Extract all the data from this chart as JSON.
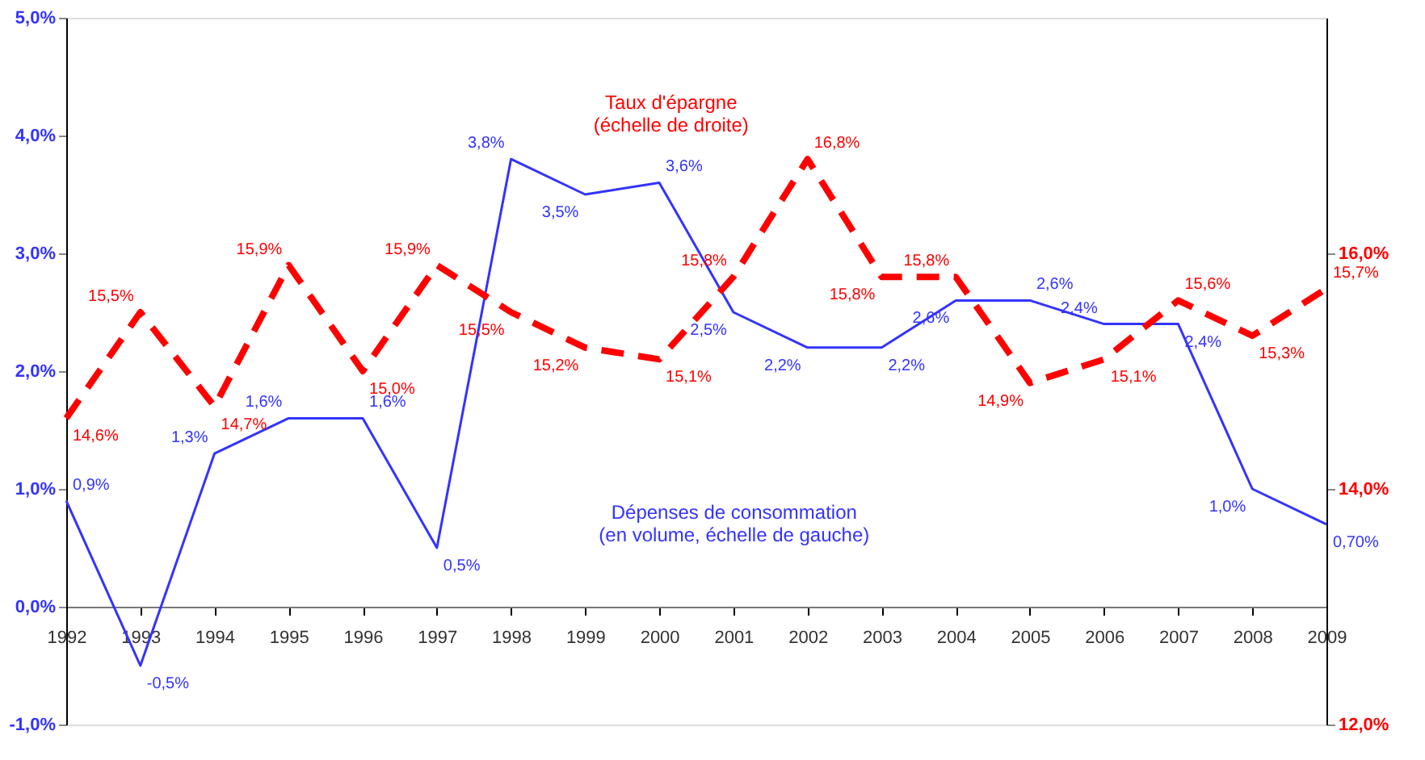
{
  "chart_data": {
    "type": "line",
    "categories": [
      "1992",
      "1993",
      "1994",
      "1995",
      "1996",
      "1997",
      "1998",
      "1999",
      "2000",
      "2001",
      "2002",
      "2003",
      "2004",
      "2005",
      "2006",
      "2007",
      "2008",
      "2009"
    ],
    "ylim": [
      -1,
      5
    ],
    "yticks": [
      {
        "value": -1,
        "label": "-1,0%"
      },
      {
        "value": 0,
        "label": "0,0%"
      },
      {
        "value": 1,
        "label": "1,0%"
      },
      {
        "value": 2,
        "label": "2,0%"
      },
      {
        "value": 3,
        "label": "3,0%"
      },
      {
        "value": 4,
        "label": "4,0%"
      },
      {
        "value": 5,
        "label": "5,0%"
      }
    ],
    "y2lim": [
      12,
      18
    ],
    "y2ticks": [
      {
        "value": 12,
        "label": "12,0%"
      },
      {
        "value": 14,
        "label": "14,0%"
      },
      {
        "value": 16,
        "label": "16,0%"
      }
    ],
    "series": [
      {
        "name": "Dépenses de consommation\n(en volume, échelle de gauche)",
        "color": "#3333ff",
        "line_style": "solid",
        "values": [
          0.9,
          -0.5,
          1.3,
          1.6,
          1.6,
          0.5,
          3.8,
          3.5,
          3.6,
          2.5,
          2.2,
          2.2,
          2.6,
          2.6,
          2.4,
          2.4,
          1.0,
          0.7
        ],
        "value_labels": [
          "0,9%",
          "-0,5%",
          "1,3%",
          "1,6%",
          "1,6%",
          "0,5%",
          "3,8%",
          "3,5%",
          "3,6%",
          "2,5%",
          "2,2%",
          "2,2%",
          "2,6%",
          "2,6%",
          "2,4%",
          "2,4%",
          "1,0%",
          "0,70%"
        ]
      },
      {
        "name": "Taux d'épargne\n(échelle de droite)",
        "color": "#ff0000",
        "line_style": "dashed",
        "axis": "y2",
        "values": [
          14.6,
          15.5,
          14.7,
          15.9,
          15.0,
          15.9,
          15.5,
          15.2,
          15.1,
          15.8,
          16.8,
          15.8,
          15.8,
          14.9,
          15.1,
          15.6,
          15.3,
          15.7
        ],
        "value_labels": [
          "14,6%",
          "15,5%",
          "14,7%",
          "15,9%",
          "15,0%",
          "15,9%",
          "15,5%",
          "15,2%",
          "15,1%",
          "15,8%",
          "16,8%",
          "15,8%",
          "15,8%",
          "14,9%",
          "15,1%",
          "15,6%",
          "15,3%",
          "15,7%"
        ]
      }
    ],
    "marker": "none",
    "grid": false,
    "legend": false
  }
}
